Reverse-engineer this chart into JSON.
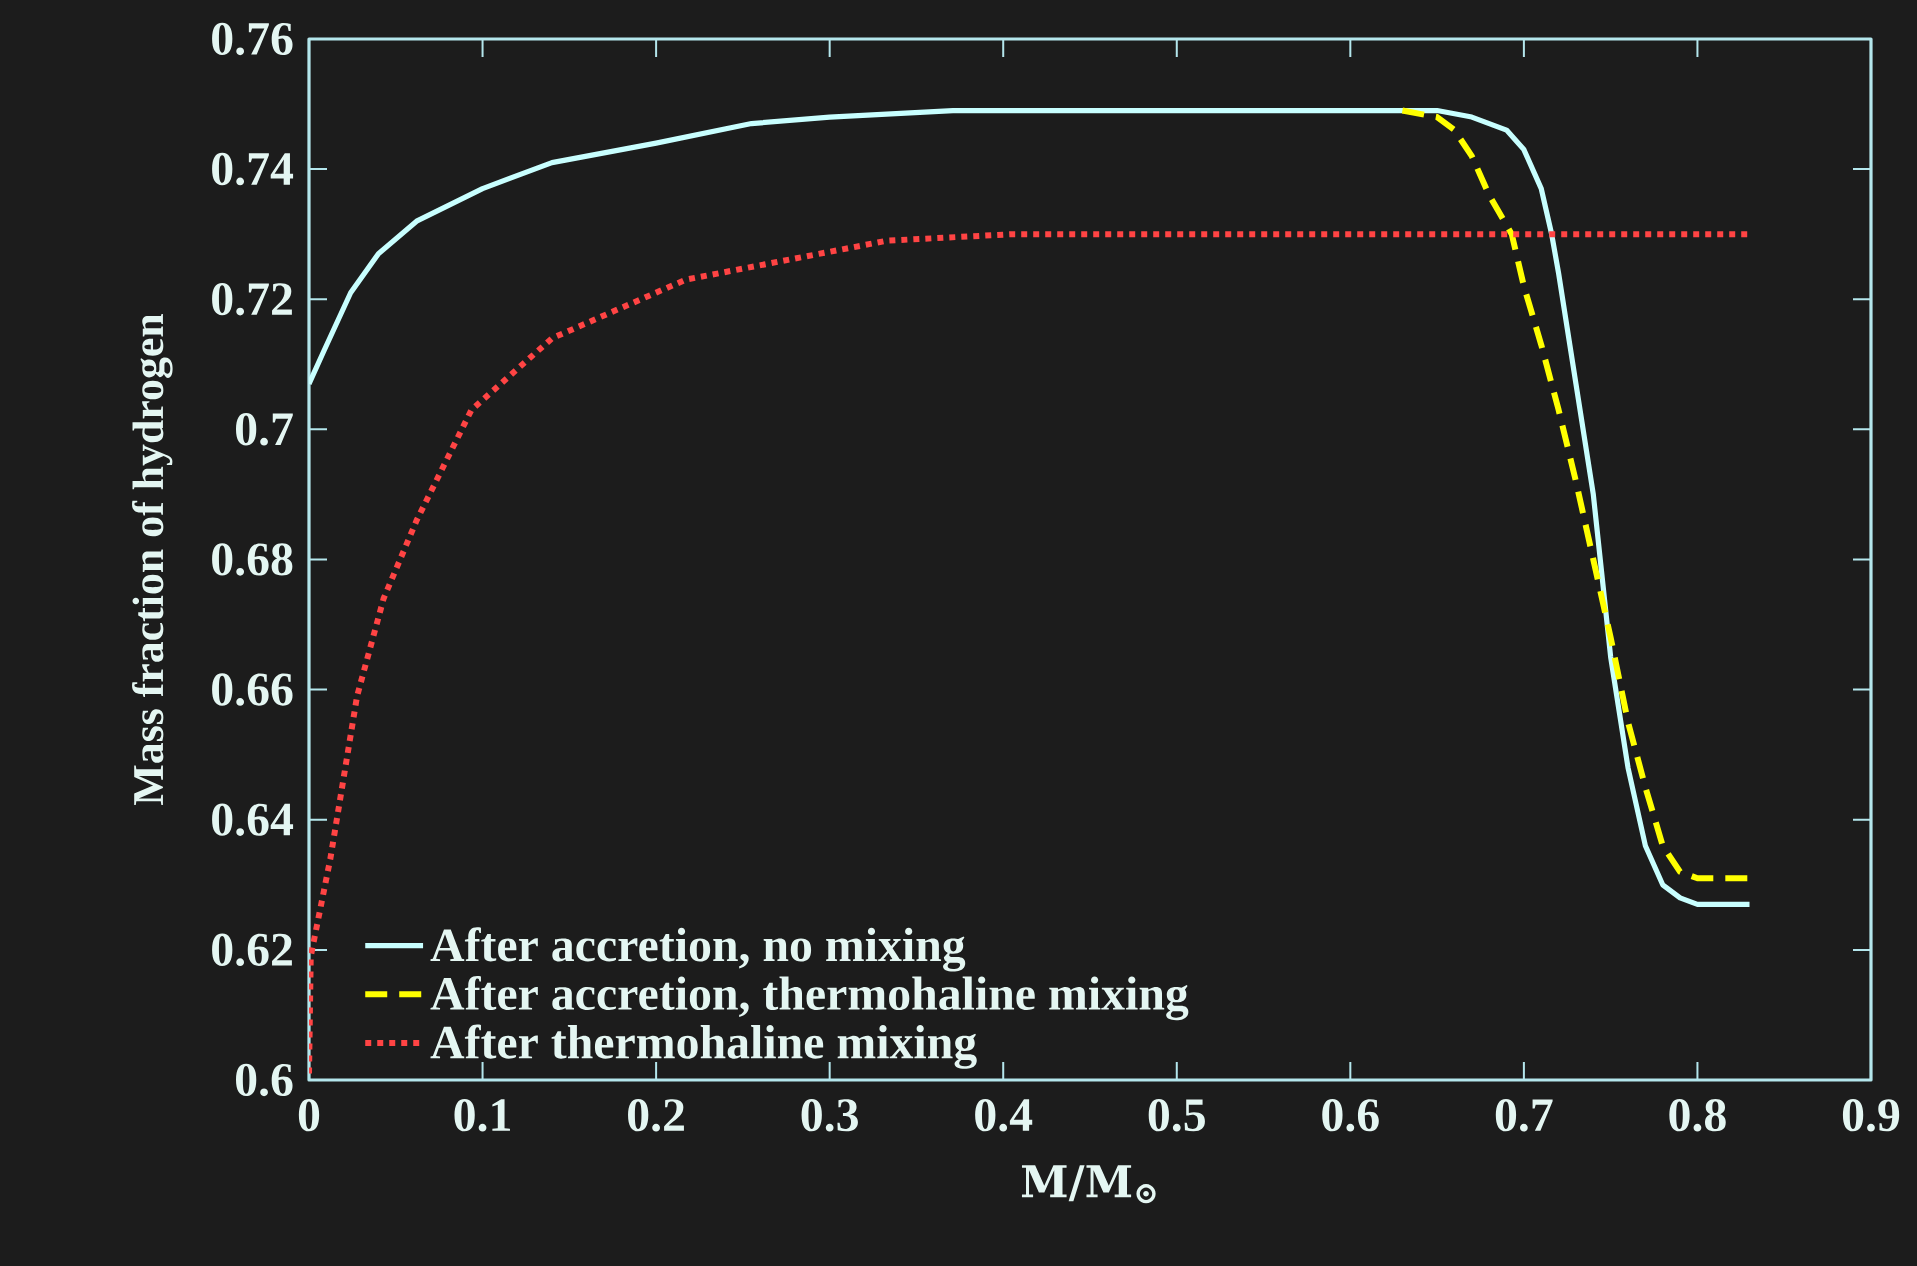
{
  "chart_data": {
    "type": "line",
    "xlabel": "M/M$_{⊙}$",
    "ylabel": "Mass fraction of hydrogen",
    "xlim": [
      0,
      0.9
    ],
    "xticks": [
      0,
      0.1,
      0.2,
      0.3,
      0.4,
      0.5,
      0.6,
      0.7,
      0.8,
      0.9
    ],
    "ylim": [
      0.6,
      0.76
    ],
    "yticks": [
      0.6,
      0.62,
      0.64,
      0.66,
      0.68,
      0.7,
      0.72,
      0.74,
      0.76
    ],
    "grid": false,
    "legend": "bottom left",
    "marker": "none",
    "series": [
      {
        "name": "After accretion, no mixing",
        "color": "#c8ffff",
        "line_style": "solid",
        "x": [
          0,
          0.0085,
          0.024,
          0.04,
          0.062,
          0.1,
          0.14,
          0.2,
          0.255,
          0.3,
          0.371,
          0.45,
          0.55,
          0.65,
          0.67,
          0.69,
          0.7,
          0.71,
          0.716,
          0.72,
          0.73,
          0.74,
          0.75,
          0.76,
          0.77,
          0.78,
          0.79,
          0.8,
          0.83
        ],
        "values": [
          0.707,
          0.712,
          0.721,
          0.727,
          0.732,
          0.737,
          0.741,
          0.744,
          0.747,
          0.748,
          0.749,
          0.749,
          0.749,
          0.749,
          0.748,
          0.746,
          0.743,
          0.737,
          0.73,
          0.724,
          0.707,
          0.69,
          0.665,
          0.648,
          0.636,
          0.63,
          0.628,
          0.627,
          0.627
        ]
      },
      {
        "name": "After accretion, thermohaline mixing",
        "color": "#ffff00",
        "line_style": "dashed",
        "x": [
          0.63,
          0.65,
          0.66,
          0.67,
          0.68,
          0.693,
          0.7,
          0.71,
          0.72,
          0.73,
          0.74,
          0.75,
          0.76,
          0.77,
          0.78,
          0.79,
          0.8,
          0.83
        ],
        "values": [
          0.749,
          0.748,
          0.746,
          0.742,
          0.736,
          0.73,
          0.722,
          0.713,
          0.703,
          0.692,
          0.68,
          0.668,
          0.655,
          0.645,
          0.636,
          0.632,
          0.631,
          0.631
        ]
      },
      {
        "name": "After thermohaline mixing",
        "color": "#ff4444",
        "line_style": "dotted",
        "x": [
          0,
          0.001,
          0.0123,
          0.0277,
          0.043,
          0.062,
          0.0936,
          0.14,
          0.217,
          0.333,
          0.405,
          0.5,
          0.6,
          0.7,
          0.83
        ],
        "values": [
          0.601,
          0.619,
          0.634,
          0.659,
          0.674,
          0.686,
          0.703,
          0.714,
          0.723,
          0.729,
          0.73,
          0.73,
          0.73,
          0.73,
          0.73
        ]
      }
    ]
  }
}
